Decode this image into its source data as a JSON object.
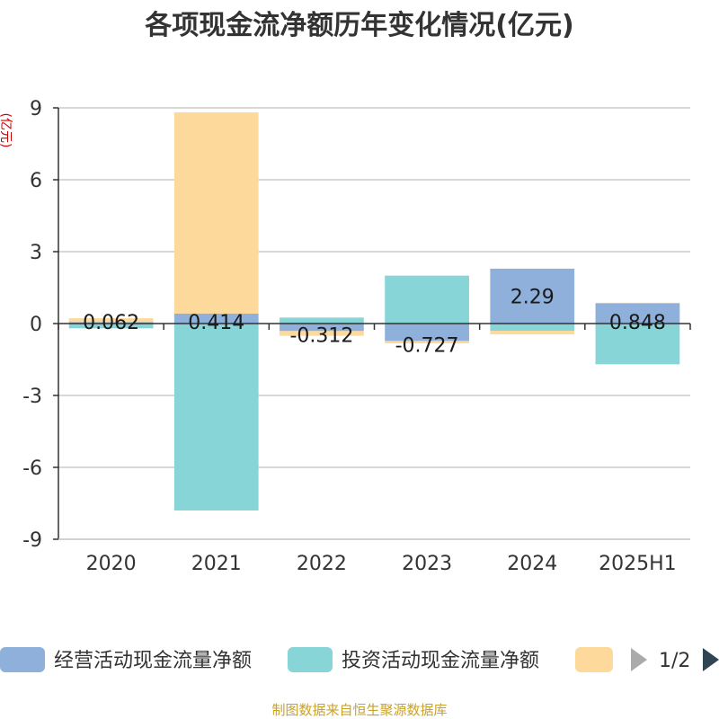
{
  "chart_data": {
    "type": "bar",
    "stacked": true,
    "title": "各项现金流净额历年变化情况(亿元)",
    "ylabel": "(亿元)",
    "categories": [
      "2020",
      "2021",
      "2022",
      "2023",
      "2024",
      "2025H1"
    ],
    "ylim": [
      -9,
      9
    ],
    "yticks": [
      9,
      6,
      3,
      0,
      -3,
      -6,
      -9
    ],
    "grid": true,
    "series": [
      {
        "name": "经营活动现金流量净额",
        "color": "#8eb0db",
        "values": [
          0.062,
          0.414,
          -0.312,
          -0.727,
          2.29,
          0.848
        ],
        "labels": [
          "0.062",
          "0.414",
          "-0.312",
          "-0.727",
          "2.29",
          "0.848"
        ]
      },
      {
        "name": "投资活动现金流量净额",
        "color": "#88d5d7",
        "values": [
          -0.2,
          -7.8,
          0.25,
          2.0,
          -0.3,
          -1.7
        ]
      },
      {
        "name": "",
        "color": "#fdd99b",
        "values": [
          0.16,
          8.4,
          -0.2,
          -0.1,
          -0.15,
          0.02
        ]
      }
    ],
    "legend": {
      "position": "bottom",
      "page": "1/2"
    }
  },
  "source": "制图数据来自恒生聚源数据库"
}
